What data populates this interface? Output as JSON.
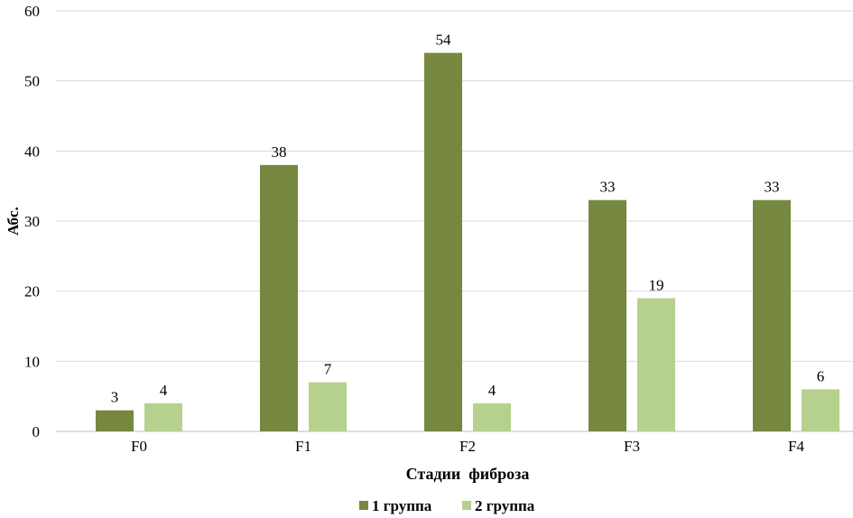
{
  "chart_data": {
    "type": "bar",
    "title": "",
    "xlabel": "Стадии  фиброза",
    "ylabel": "Абс.",
    "categories": [
      "F0",
      "F1",
      "F2",
      "F3",
      "F4"
    ],
    "series": [
      {
        "name": "1 группа",
        "color": "#76883f",
        "values": [
          3,
          38,
          54,
          33,
          33
        ]
      },
      {
        "name": "2 группа",
        "color": "#b6d08e",
        "values": [
          4,
          7,
          4,
          19,
          6
        ]
      }
    ],
    "ylim": [
      0,
      60
    ],
    "yticks": [
      0,
      10,
      20,
      30,
      40,
      50,
      60
    ],
    "grid": true,
    "legend_position": "bottom"
  }
}
